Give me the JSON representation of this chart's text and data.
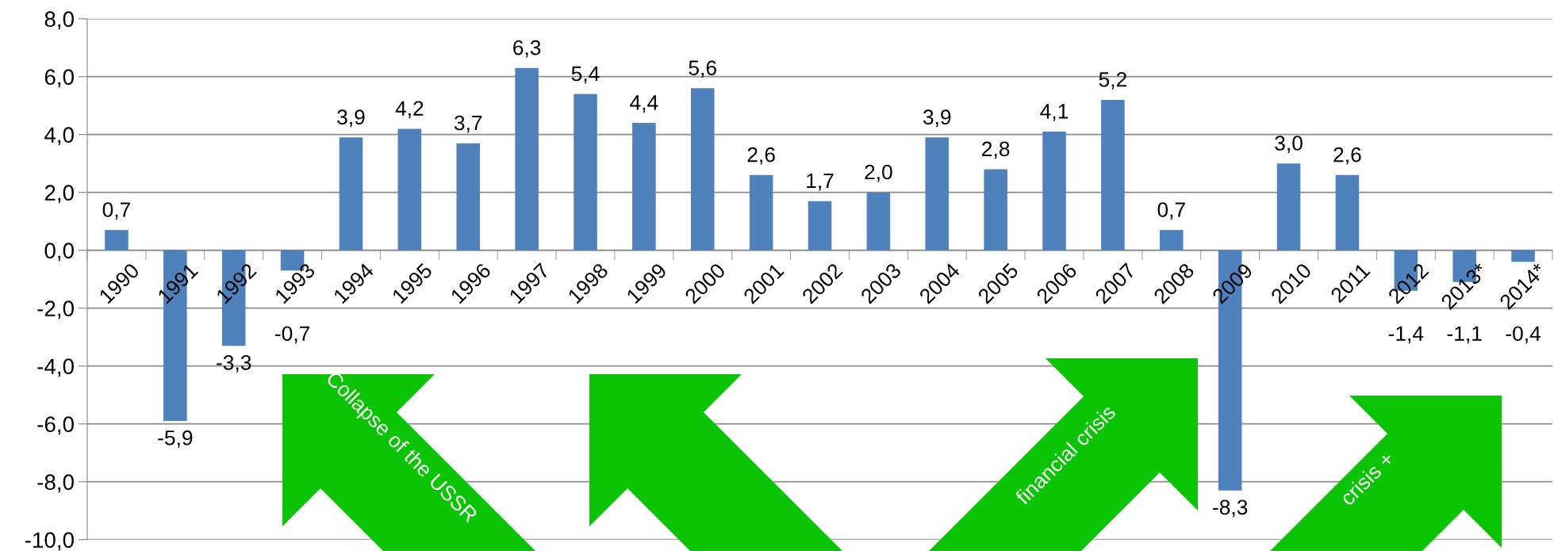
{
  "chart_data": {
    "type": "bar",
    "categories": [
      "1990",
      "1991",
      "1992",
      "1993",
      "1994",
      "1995",
      "1996",
      "1997",
      "1998",
      "1999",
      "2000",
      "2001",
      "2002",
      "2003",
      "2004",
      "2005",
      "2006",
      "2007",
      "2008",
      "2009",
      "2010",
      "2011",
      "2012",
      "2013*",
      "2014*"
    ],
    "series": [
      {
        "color": "#4f81bd",
        "values": [
          0.7,
          -5.9,
          -3.3,
          -0.7,
          3.9,
          4.2,
          3.7,
          6.3,
          5.4,
          4.4,
          5.6,
          2.6,
          1.7,
          2.0,
          3.9,
          2.8,
          4.1,
          5.2,
          0.7,
          -8.3,
          3.0,
          2.6,
          -1.4,
          -1.1,
          -0.4
        ],
        "value_labels": [
          "0,7",
          "-5,9",
          "-3,3",
          "-0,7",
          "3,9",
          "4,2",
          "3,7",
          "6,3",
          "5,4",
          "4,4",
          "5,6",
          "2,6",
          "1,7",
          "2,0",
          "3,9",
          "2,8",
          "4,1",
          "5,2",
          "0,7",
          "-8,3",
          "3,0",
          "2,6",
          "-1,4",
          "-1,1",
          "-0,4"
        ]
      }
    ],
    "ylim": [
      -10,
      8
    ],
    "yticks": [
      {
        "value": -10,
        "label": "-10,0"
      },
      {
        "value": -8,
        "label": "-8,0"
      },
      {
        "value": -6,
        "label": "-6,0"
      },
      {
        "value": -4,
        "label": "-4,0"
      },
      {
        "value": -2,
        "label": "-2,0"
      },
      {
        "value": 0,
        "label": "0,0"
      },
      {
        "value": 2,
        "label": "2,0"
      },
      {
        "value": 4,
        "label": "4,0"
      },
      {
        "value": 6,
        "label": "6,0"
      },
      {
        "value": 8,
        "label": "8,0"
      }
    ],
    "grid": "y",
    "annotations": [
      "Collapse of the USSR",
      "financial crisis",
      "crisis +"
    ]
  }
}
